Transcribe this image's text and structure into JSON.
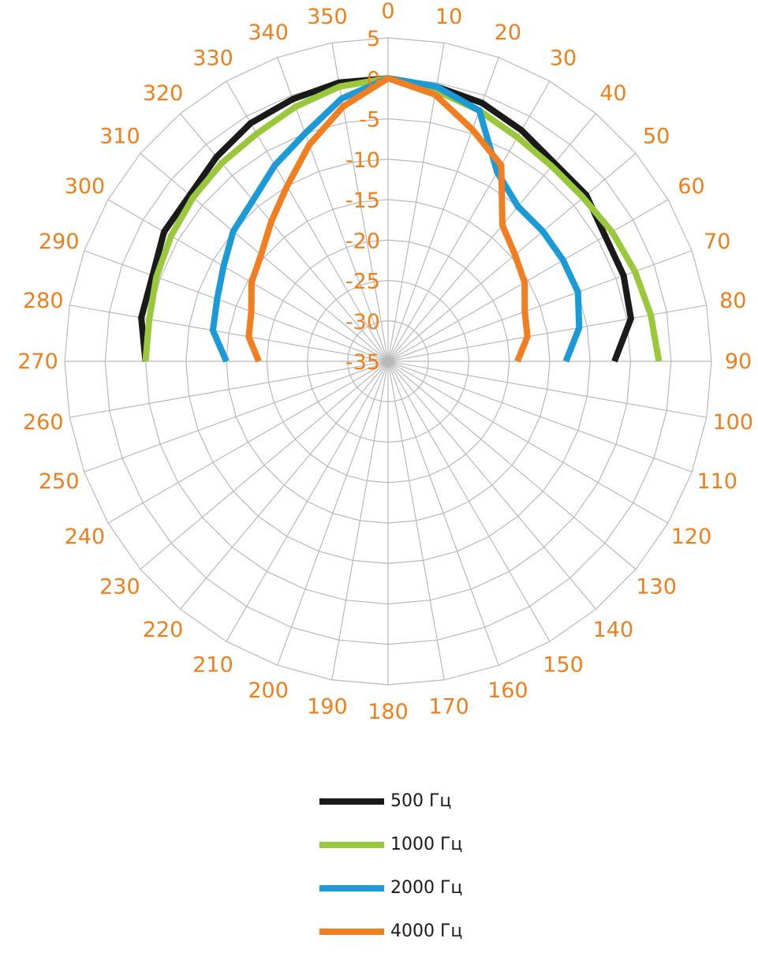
{
  "chart_data": {
    "type": "polar-line",
    "title": "",
    "angular_axis": {
      "unit": "degrees",
      "direction": "clockwise",
      "zero_at": "top",
      "tick_labels": [
        "0",
        "10",
        "20",
        "30",
        "40",
        "50",
        "60",
        "70",
        "80",
        "90",
        "100",
        "110",
        "120",
        "130",
        "140",
        "150",
        "160",
        "170",
        "180",
        "190",
        "200",
        "210",
        "220",
        "230",
        "240",
        "250",
        "260",
        "270",
        "280",
        "290",
        "300",
        "310",
        "320",
        "330",
        "340",
        "350"
      ],
      "label_color": "#ef7f1a"
    },
    "radial_axis": {
      "range": [
        -35,
        5
      ],
      "tick_values": [
        5,
        0,
        -5,
        -10,
        -15,
        -20,
        -25,
        -30,
        -35
      ],
      "tick_labels": [
        "5",
        "0",
        "-5",
        "-10",
        "-15",
        "-20",
        "-25",
        "-30",
        "-35"
      ],
      "label_color": "#ef7f1a"
    },
    "grid": true,
    "grid_color": "#b9b9b9",
    "legend_position": "bottom",
    "series": [
      {
        "name": "500 Гц",
        "color": "#1a1a1a",
        "angles": [
          270,
          280,
          290,
          300,
          310,
          320,
          330,
          340,
          350,
          0,
          10,
          20,
          30,
          40,
          50,
          60,
          70,
          80,
          90
        ],
        "values": [
          -5,
          -4,
          -4,
          -3,
          -3,
          -2,
          -1,
          -0.5,
          0,
          0,
          -0.5,
          -1,
          -2,
          -3,
          -3,
          -4,
          -4,
          -4.5,
          -7
        ]
      },
      {
        "name": "1000 Гц",
        "color": "#9ac83c",
        "angles": [
          270,
          280,
          290,
          300,
          310,
          320,
          330,
          340,
          350,
          0,
          10,
          20,
          30,
          40,
          50,
          60,
          70,
          80,
          90
        ],
        "values": [
          -5,
          -5,
          -4.5,
          -4,
          -3.5,
          -3,
          -2.5,
          -1.5,
          -0.5,
          0,
          -1,
          -2,
          -3,
          -3.5,
          -3.5,
          -3,
          -2.5,
          -2,
          -1.5
        ]
      },
      {
        "name": "2000 Гц",
        "color": "#1a9ad6",
        "angles": [
          270,
          280,
          290,
          300,
          310,
          320,
          330,
          340,
          350,
          0,
          10,
          20,
          30,
          40,
          50,
          60,
          70,
          80,
          90
        ],
        "values": [
          -15,
          -13,
          -12.5,
          -11.5,
          -10,
          -9,
          -7,
          -5,
          -2,
          0,
          -0.5,
          -2,
          -8,
          -10,
          -10,
          -10,
          -10,
          -11,
          -13
        ]
      },
      {
        "name": "4000 Гц",
        "color": "#f17e20",
        "angles": [
          270,
          280,
          290,
          300,
          310,
          320,
          330,
          340,
          350,
          0,
          10,
          20,
          30,
          40,
          50,
          60,
          70,
          80,
          90
        ],
        "values": [
          -19,
          -17.5,
          -17,
          -15.5,
          -14.5,
          -12.5,
          -10,
          -6.5,
          -3,
          0,
          -1.5,
          -4.5,
          -7,
          -13,
          -14.5,
          -15.5,
          -17,
          -17.5,
          -19
        ]
      }
    ]
  },
  "legend": {
    "items": [
      {
        "label": "500 Гц",
        "color": "#1a1a1a"
      },
      {
        "label": "1000 Гц",
        "color": "#9ac83c"
      },
      {
        "label": "2000 Гц",
        "color": "#1a9ad6"
      },
      {
        "label": "4000 Гц",
        "color": "#f17e20"
      }
    ]
  }
}
